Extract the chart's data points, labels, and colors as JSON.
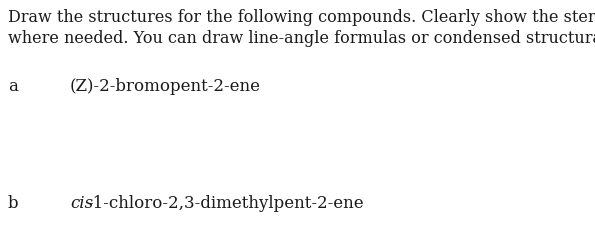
{
  "background_color": "#ffffff",
  "instruction_line1": "Draw the structures for the following compounds. Clearly show the stereochemistry",
  "instruction_line2": "where needed. You can draw line-angle formulas or condensed structural formulas.",
  "label_a": "a",
  "compound_a": "(Z)-2-bromopent-2-ene",
  "label_b": "b",
  "compound_b_italic": "cis",
  "compound_b_rest": "-1-chloro-2,3-dimethylpent-2-ene",
  "font_size_instruction": 11.5,
  "font_size_label": 12,
  "font_size_compound": 12,
  "font_family": "serif",
  "text_color": "#1a1a1a",
  "fig_width": 5.95,
  "fig_height": 2.36,
  "dpi": 100
}
